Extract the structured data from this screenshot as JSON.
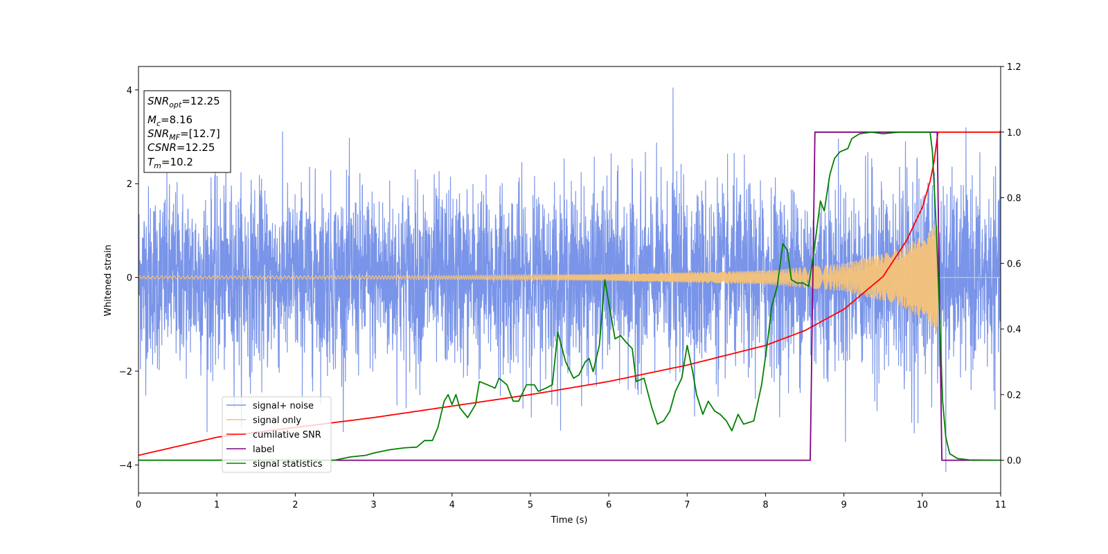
{
  "chart_data": {
    "type": "line",
    "title": "",
    "xlabel": "Time (s)",
    "ylabel": "Whitened strain",
    "xlim": [
      0,
      11
    ],
    "ylim": [
      -4.6,
      4.5
    ],
    "y2lim": [
      -0.1,
      1.2
    ],
    "x_ticks": [
      "0",
      "1",
      "2",
      "3",
      "4",
      "5",
      "6",
      "7",
      "8",
      "9",
      "10",
      "11"
    ],
    "y_ticks": [
      "−4",
      "−2",
      "0",
      "2",
      "4"
    ],
    "y2_ticks": [
      "0.0",
      "0.2",
      "0.4",
      "0.6",
      "0.8",
      "1.0",
      "1.2"
    ],
    "grid": false,
    "legend_position": "lower-left",
    "info_box": {
      "snr_opt": "12.25",
      "mc": "8.16",
      "snr_mf": "[12.7]",
      "csnr": "12.25",
      "tm": "10.2"
    },
    "series": [
      {
        "name": "signal+ noise",
        "axis": "left",
        "color": "#7994e8",
        "style": "stochastic noise band ~±2.3, peaks near ±3, max 4.05 at t=6.82, min -4.15 at t=10.3",
        "noise_sigma": 0.95
      },
      {
        "name": "signal only",
        "axis": "left",
        "color": "#f5c278",
        "style": "chirp, amplitude growing from ~0.03 to ~1.2 then stop",
        "t_merger": 10.2,
        "amplitude_envelope": [
          {
            "x": 0,
            "y": 0.03
          },
          {
            "x": 4,
            "y": 0.04
          },
          {
            "x": 6,
            "y": 0.07
          },
          {
            "x": 8,
            "y": 0.15
          },
          {
            "x": 9,
            "y": 0.3
          },
          {
            "x": 9.7,
            "y": 0.6
          },
          {
            "x": 10.1,
            "y": 1.0
          },
          {
            "x": 10.2,
            "y": 1.2
          }
        ]
      },
      {
        "name": "cumilative SNR",
        "axis": "right",
        "color": "#ff0000",
        "points": [
          {
            "x": 0.0,
            "y": 0.015
          },
          {
            "x": 1.0,
            "y": 0.07
          },
          {
            "x": 2.0,
            "y": 0.1
          },
          {
            "x": 3.0,
            "y": 0.13
          },
          {
            "x": 4.0,
            "y": 0.165
          },
          {
            "x": 5.0,
            "y": 0.2
          },
          {
            "x": 6.0,
            "y": 0.24
          },
          {
            "x": 7.0,
            "y": 0.29
          },
          {
            "x": 8.0,
            "y": 0.35
          },
          {
            "x": 8.5,
            "y": 0.395
          },
          {
            "x": 9.0,
            "y": 0.46
          },
          {
            "x": 9.5,
            "y": 0.56
          },
          {
            "x": 9.8,
            "y": 0.67
          },
          {
            "x": 10.0,
            "y": 0.77
          },
          {
            "x": 10.1,
            "y": 0.85
          },
          {
            "x": 10.15,
            "y": 0.91
          },
          {
            "x": 10.2,
            "y": 1.0
          },
          {
            "x": 11.0,
            "y": 1.0
          }
        ]
      },
      {
        "name": "label",
        "axis": "right",
        "color": "#800080",
        "points": [
          {
            "x": 0.0,
            "y": 0.0
          },
          {
            "x": 8.57,
            "y": 0.0
          },
          {
            "x": 8.63,
            "y": 1.0
          },
          {
            "x": 10.19,
            "y": 1.0
          },
          {
            "x": 10.25,
            "y": 0.0
          },
          {
            "x": 11.0,
            "y": 0.0
          }
        ]
      },
      {
        "name": "signal statistics",
        "axis": "right",
        "color": "#008000",
        "points": [
          {
            "x": 0.0,
            "y": 0.0
          },
          {
            "x": 2.5,
            "y": 0.0
          },
          {
            "x": 2.7,
            "y": 0.01
          },
          {
            "x": 2.9,
            "y": 0.015
          },
          {
            "x": 3.0,
            "y": 0.022
          },
          {
            "x": 3.2,
            "y": 0.032
          },
          {
            "x": 3.4,
            "y": 0.038
          },
          {
            "x": 3.55,
            "y": 0.04
          },
          {
            "x": 3.65,
            "y": 0.06
          },
          {
            "x": 3.75,
            "y": 0.06
          },
          {
            "x": 3.82,
            "y": 0.1
          },
          {
            "x": 3.9,
            "y": 0.18
          },
          {
            "x": 3.95,
            "y": 0.2
          },
          {
            "x": 4.0,
            "y": 0.17
          },
          {
            "x": 4.05,
            "y": 0.2
          },
          {
            "x": 4.1,
            "y": 0.16
          },
          {
            "x": 4.2,
            "y": 0.13
          },
          {
            "x": 4.3,
            "y": 0.17
          },
          {
            "x": 4.35,
            "y": 0.24
          },
          {
            "x": 4.45,
            "y": 0.23
          },
          {
            "x": 4.55,
            "y": 0.22
          },
          {
            "x": 4.6,
            "y": 0.25
          },
          {
            "x": 4.7,
            "y": 0.23
          },
          {
            "x": 4.78,
            "y": 0.18
          },
          {
            "x": 4.85,
            "y": 0.18
          },
          {
            "x": 4.95,
            "y": 0.23
          },
          {
            "x": 5.05,
            "y": 0.23
          },
          {
            "x": 5.1,
            "y": 0.21
          },
          {
            "x": 5.2,
            "y": 0.22
          },
          {
            "x": 5.28,
            "y": 0.23
          },
          {
            "x": 5.35,
            "y": 0.39
          },
          {
            "x": 5.45,
            "y": 0.3
          },
          {
            "x": 5.55,
            "y": 0.25
          },
          {
            "x": 5.62,
            "y": 0.26
          },
          {
            "x": 5.7,
            "y": 0.3
          },
          {
            "x": 5.75,
            "y": 0.31
          },
          {
            "x": 5.8,
            "y": 0.27
          },
          {
            "x": 5.88,
            "y": 0.35
          },
          {
            "x": 5.95,
            "y": 0.55
          },
          {
            "x": 6.0,
            "y": 0.48
          },
          {
            "x": 6.08,
            "y": 0.37
          },
          {
            "x": 6.15,
            "y": 0.38
          },
          {
            "x": 6.22,
            "y": 0.36
          },
          {
            "x": 6.3,
            "y": 0.34
          },
          {
            "x": 6.35,
            "y": 0.24
          },
          {
            "x": 6.45,
            "y": 0.25
          },
          {
            "x": 6.55,
            "y": 0.16
          },
          {
            "x": 6.62,
            "y": 0.11
          },
          {
            "x": 6.7,
            "y": 0.12
          },
          {
            "x": 6.78,
            "y": 0.15
          },
          {
            "x": 6.85,
            "y": 0.21
          },
          {
            "x": 6.93,
            "y": 0.25
          },
          {
            "x": 7.0,
            "y": 0.35
          },
          {
            "x": 7.07,
            "y": 0.27
          },
          {
            "x": 7.12,
            "y": 0.2
          },
          {
            "x": 7.2,
            "y": 0.14
          },
          {
            "x": 7.27,
            "y": 0.18
          },
          {
            "x": 7.35,
            "y": 0.15
          },
          {
            "x": 7.42,
            "y": 0.14
          },
          {
            "x": 7.5,
            "y": 0.12
          },
          {
            "x": 7.57,
            "y": 0.09
          },
          {
            "x": 7.65,
            "y": 0.14
          },
          {
            "x": 7.72,
            "y": 0.11
          },
          {
            "x": 7.85,
            "y": 0.12
          },
          {
            "x": 7.95,
            "y": 0.23
          },
          {
            "x": 8.02,
            "y": 0.35
          },
          {
            "x": 8.08,
            "y": 0.47
          },
          {
            "x": 8.15,
            "y": 0.53
          },
          {
            "x": 8.22,
            "y": 0.66
          },
          {
            "x": 8.28,
            "y": 0.64
          },
          {
            "x": 8.33,
            "y": 0.55
          },
          {
            "x": 8.4,
            "y": 0.54
          },
          {
            "x": 8.48,
            "y": 0.54
          },
          {
            "x": 8.55,
            "y": 0.53
          },
          {
            "x": 8.62,
            "y": 0.64
          },
          {
            "x": 8.7,
            "y": 0.79
          },
          {
            "x": 8.75,
            "y": 0.76
          },
          {
            "x": 8.82,
            "y": 0.87
          },
          {
            "x": 8.88,
            "y": 0.92
          },
          {
            "x": 8.95,
            "y": 0.94
          },
          {
            "x": 9.05,
            "y": 0.95
          },
          {
            "x": 9.1,
            "y": 0.98
          },
          {
            "x": 9.2,
            "y": 0.995
          },
          {
            "x": 9.35,
            "y": 1.0
          },
          {
            "x": 9.5,
            "y": 0.995
          },
          {
            "x": 9.7,
            "y": 1.0
          },
          {
            "x": 9.85,
            "y": 1.0
          },
          {
            "x": 10.0,
            "y": 1.0
          },
          {
            "x": 10.1,
            "y": 1.0
          },
          {
            "x": 10.13,
            "y": 0.94
          },
          {
            "x": 10.18,
            "y": 0.7
          },
          {
            "x": 10.22,
            "y": 0.45
          },
          {
            "x": 10.26,
            "y": 0.18
          },
          {
            "x": 10.3,
            "y": 0.07
          },
          {
            "x": 10.35,
            "y": 0.02
          },
          {
            "x": 10.45,
            "y": 0.005
          },
          {
            "x": 10.6,
            "y": 0.001
          },
          {
            "x": 11.0,
            "y": 0.0
          }
        ]
      }
    ]
  }
}
